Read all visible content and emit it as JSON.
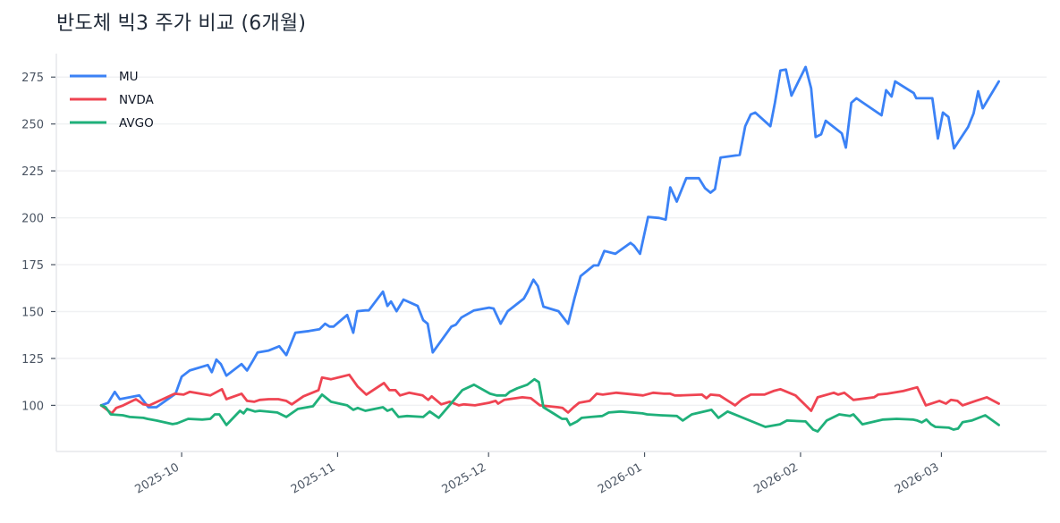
{
  "title": "반도체 빅3 주가 비교 (6개월)",
  "colors": {
    "MU": "#3b82f6",
    "NVDA": "#ef4452",
    "AVGO": "#1fb07a",
    "grid": "#f0f1f3",
    "axis": "#e5e7eb",
    "tick": "#4b5563"
  },
  "chart_data": {
    "type": "line",
    "title": "반도체 빅3 주가 비교 (6개월)",
    "xlabel": "",
    "ylabel": "",
    "x_unit": "days since 2025-09-15",
    "x_range": [
      -8.9,
      187.9
    ],
    "ylim": [
      75.4,
      287.5
    ],
    "yticks": [
      100,
      125,
      150,
      175,
      200,
      225,
      250,
      275
    ],
    "xticks": [
      {
        "label": "2025-10",
        "day": 16
      },
      {
        "label": "2025-11",
        "day": 47
      },
      {
        "label": "2025-12",
        "day": 77
      },
      {
        "label": "2026-01",
        "day": 108
      },
      {
        "label": "2026-02",
        "day": 139
      },
      {
        "label": "2026-03",
        "day": 167
      }
    ],
    "grid": {
      "horizontal": true,
      "vertical": false
    },
    "legend_position": "upper left",
    "series": [
      {
        "name": "MU",
        "points": [
          [
            0,
            100
          ],
          [
            1.4,
            101.4
          ],
          [
            2.7,
            107.2
          ],
          [
            3.7,
            103.3
          ],
          [
            7.6,
            105.3
          ],
          [
            9.4,
            99.0
          ],
          [
            11,
            99.0
          ],
          [
            14.8,
            106.2
          ],
          [
            16,
            115.3
          ],
          [
            17.6,
            118.6
          ],
          [
            21.2,
            121.5
          ],
          [
            22,
            117.7
          ],
          [
            22.9,
            124.4
          ],
          [
            23.8,
            122
          ],
          [
            24.9,
            115.8
          ],
          [
            27.9,
            122
          ],
          [
            29,
            118.6
          ],
          [
            30.2,
            123.9
          ],
          [
            31.1,
            128.2
          ],
          [
            33.3,
            129.2
          ],
          [
            35.4,
            131.5
          ],
          [
            36.8,
            126.8
          ],
          [
            38.6,
            138.7
          ],
          [
            41.3,
            139.6
          ],
          [
            43.4,
            140.6
          ],
          [
            44.5,
            143.5
          ],
          [
            45.4,
            142
          ],
          [
            46.2,
            142
          ],
          [
            48.9,
            148.2
          ],
          [
            50.1,
            138.7
          ],
          [
            50.9,
            150.2
          ],
          [
            52.5,
            150.6
          ],
          [
            53.2,
            150.6
          ],
          [
            56,
            160.6
          ],
          [
            56.9,
            153
          ],
          [
            57.6,
            155.4
          ],
          [
            58.7,
            150.2
          ],
          [
            60.1,
            156.4
          ],
          [
            62.9,
            153
          ],
          [
            64,
            145.4
          ],
          [
            64.9,
            143.5
          ],
          [
            65.9,
            128.2
          ],
          [
            69.6,
            142
          ],
          [
            70.5,
            143
          ],
          [
            71.6,
            146.8
          ],
          [
            74.1,
            150.6
          ],
          [
            77.1,
            152.1
          ],
          [
            78,
            151.6
          ],
          [
            79.4,
            143.5
          ],
          [
            80.8,
            150.2
          ],
          [
            84,
            156.9
          ],
          [
            84.7,
            160.2
          ],
          [
            85.9,
            167
          ],
          [
            86.8,
            163.6
          ],
          [
            87.9,
            152.6
          ],
          [
            90.9,
            150.2
          ],
          [
            92.8,
            143.5
          ],
          [
            94.1,
            157.4
          ],
          [
            95.3,
            168.9
          ],
          [
            97.9,
            174.6
          ],
          [
            98.8,
            174.6
          ],
          [
            100,
            182.3
          ],
          [
            102.2,
            180.8
          ],
          [
            105.2,
            186.6
          ],
          [
            105.9,
            185.1
          ],
          [
            107.1,
            180.8
          ],
          [
            108.7,
            200.4
          ],
          [
            110.9,
            199.9
          ],
          [
            112.2,
            199
          ],
          [
            113.1,
            216.2
          ],
          [
            114.4,
            208.6
          ],
          [
            116.3,
            221.1
          ],
          [
            118.8,
            221.1
          ],
          [
            120,
            215.8
          ],
          [
            121.1,
            213.4
          ],
          [
            122,
            215.3
          ],
          [
            123.1,
            232.1
          ],
          [
            126.9,
            233.5
          ],
          [
            128,
            248.8
          ],
          [
            129.1,
            255.1
          ],
          [
            130,
            256.1
          ],
          [
            133,
            248.8
          ],
          [
            133.9,
            261.3
          ],
          [
            135,
            278.5
          ],
          [
            136.1,
            279
          ],
          [
            137.2,
            265.1
          ],
          [
            140,
            280.4
          ],
          [
            141.1,
            269
          ],
          [
            142,
            243.1
          ],
          [
            143.1,
            244.5
          ],
          [
            144,
            251.7
          ],
          [
            147.2,
            245
          ],
          [
            148,
            237.4
          ],
          [
            149.1,
            261.3
          ],
          [
            150.1,
            263.7
          ],
          [
            155.1,
            254.6
          ],
          [
            156,
            268
          ],
          [
            157.1,
            264.6
          ],
          [
            157.8,
            272.7
          ],
          [
            161.5,
            266.5
          ],
          [
            162,
            263.7
          ],
          [
            164.2,
            263.7
          ],
          [
            165.2,
            263.7
          ],
          [
            166.3,
            242.2
          ],
          [
            167.3,
            256.1
          ],
          [
            168.4,
            253.7
          ],
          [
            169.5,
            237
          ],
          [
            172.3,
            248.4
          ],
          [
            173.4,
            255.6
          ],
          [
            174.3,
            267.5
          ],
          [
            175.2,
            258.4
          ],
          [
            178.4,
            272.7
          ]
        ]
      },
      {
        "name": "NVDA",
        "points": [
          [
            0,
            100
          ],
          [
            2.1,
            95.7
          ],
          [
            3,
            98.6
          ],
          [
            4.4,
            100
          ],
          [
            6.9,
            103.3
          ],
          [
            8.4,
            100.5
          ],
          [
            9.6,
            100
          ],
          [
            14.6,
            106.2
          ],
          [
            16.4,
            105.7
          ],
          [
            17.6,
            107.2
          ],
          [
            21.7,
            105.3
          ],
          [
            24,
            108.6
          ],
          [
            24.9,
            103.3
          ],
          [
            27.9,
            106.2
          ],
          [
            29,
            102.4
          ],
          [
            30.4,
            101.9
          ],
          [
            31.5,
            102.9
          ],
          [
            33.3,
            103.3
          ],
          [
            35.2,
            103.3
          ],
          [
            36.8,
            102.4
          ],
          [
            37.9,
            100.5
          ],
          [
            40.2,
            104.8
          ],
          [
            43.2,
            108.1
          ],
          [
            43.9,
            114.8
          ],
          [
            45.7,
            113.9
          ],
          [
            49.3,
            116.3
          ],
          [
            51,
            110
          ],
          [
            52.7,
            105.7
          ],
          [
            56.2,
            111.9
          ],
          [
            57.3,
            108.1
          ],
          [
            58.5,
            108.1
          ],
          [
            59.4,
            105.3
          ],
          [
            61.2,
            106.7
          ],
          [
            63.9,
            105.3
          ],
          [
            65,
            102.9
          ],
          [
            65.7,
            104.8
          ],
          [
            67.6,
            100.5
          ],
          [
            69.3,
            101.9
          ],
          [
            71.1,
            100
          ],
          [
            72.1,
            100.5
          ],
          [
            74.3,
            100
          ],
          [
            77.1,
            101.4
          ],
          [
            78.4,
            102.4
          ],
          [
            78.9,
            100.9
          ],
          [
            80.1,
            102.9
          ],
          [
            83.7,
            104.3
          ],
          [
            85.4,
            103.8
          ],
          [
            87.2,
            100
          ],
          [
            90.8,
            99.0
          ],
          [
            91.7,
            98.6
          ],
          [
            92.8,
            96.2
          ],
          [
            93.9,
            99.0
          ],
          [
            95,
            101.4
          ],
          [
            97.1,
            102.4
          ],
          [
            98.5,
            106.2
          ],
          [
            99.7,
            105.7
          ],
          [
            102.4,
            106.7
          ],
          [
            107.7,
            105.3
          ],
          [
            109.7,
            106.7
          ],
          [
            111.9,
            106.2
          ],
          [
            113.1,
            106.2
          ],
          [
            114,
            105.3
          ],
          [
            115.1,
            105.3
          ],
          [
            119.4,
            105.7
          ],
          [
            120.3,
            103.8
          ],
          [
            121.1,
            105.7
          ],
          [
            122.9,
            105.3
          ],
          [
            126,
            100
          ],
          [
            127.4,
            103.3
          ],
          [
            129.1,
            105.7
          ],
          [
            131.8,
            105.7
          ],
          [
            133.6,
            107.6
          ],
          [
            135,
            108.6
          ],
          [
            138,
            105.3
          ],
          [
            140,
            100
          ],
          [
            141.1,
            97.1
          ],
          [
            142.4,
            104.3
          ],
          [
            145.6,
            106.7
          ],
          [
            146.5,
            105.7
          ],
          [
            147.7,
            106.7
          ],
          [
            149.5,
            102.9
          ],
          [
            153.6,
            104.3
          ],
          [
            154.4,
            105.7
          ],
          [
            156.2,
            106.2
          ],
          [
            159.4,
            107.6
          ],
          [
            162.2,
            109.6
          ],
          [
            163.9,
            100
          ],
          [
            166.6,
            102.4
          ],
          [
            167.9,
            100.9
          ],
          [
            168.9,
            102.9
          ],
          [
            170.2,
            102.4
          ],
          [
            171.2,
            100
          ],
          [
            173.8,
            102.4
          ],
          [
            176,
            104.3
          ],
          [
            178.4,
            100.9
          ]
        ]
      },
      {
        "name": "AVGO",
        "points": [
          [
            0,
            100
          ],
          [
            0.9,
            99.0
          ],
          [
            1.9,
            95.2
          ],
          [
            4.3,
            94.7
          ],
          [
            5.7,
            93.8
          ],
          [
            8.4,
            93.3
          ],
          [
            9.2,
            92.8
          ],
          [
            11,
            91.9
          ],
          [
            14.2,
            90
          ],
          [
            15.1,
            90.4
          ],
          [
            17.3,
            92.8
          ],
          [
            20.1,
            92.4
          ],
          [
            21.7,
            92.8
          ],
          [
            22.6,
            95.2
          ],
          [
            23.5,
            95.2
          ],
          [
            24.9,
            89.5
          ],
          [
            27.6,
            97.1
          ],
          [
            28.3,
            95.7
          ],
          [
            29,
            98.1
          ],
          [
            30.6,
            96.7
          ],
          [
            31.5,
            97.1
          ],
          [
            35,
            96.2
          ],
          [
            36.8,
            93.8
          ],
          [
            39.1,
            98.1
          ],
          [
            42.1,
            99.5
          ],
          [
            43.9,
            105.7
          ],
          [
            45.7,
            101.9
          ],
          [
            48.9,
            100
          ],
          [
            50.1,
            97.6
          ],
          [
            51,
            98.6
          ],
          [
            52.5,
            97.1
          ],
          [
            56,
            99.0
          ],
          [
            56.9,
            97.1
          ],
          [
            57.8,
            98.1
          ],
          [
            59.1,
            93.8
          ],
          [
            60.8,
            94.3
          ],
          [
            64,
            93.8
          ],
          [
            65.3,
            96.7
          ],
          [
            67.1,
            93.3
          ],
          [
            69.4,
            100.5
          ],
          [
            71.8,
            108.1
          ],
          [
            74.1,
            111
          ],
          [
            77.3,
            106.2
          ],
          [
            78.6,
            105.3
          ],
          [
            80.4,
            105.3
          ],
          [
            81.2,
            107.2
          ],
          [
            82.7,
            109.1
          ],
          [
            84.7,
            111
          ],
          [
            86.1,
            113.9
          ],
          [
            87,
            112.4
          ],
          [
            87.9,
            99.0
          ],
          [
            90.2,
            95.2
          ],
          [
            91.6,
            92.8
          ],
          [
            92.5,
            92.8
          ],
          [
            93.2,
            89.5
          ],
          [
            94.6,
            91.4
          ],
          [
            95.5,
            93.3
          ],
          [
            97.3,
            93.8
          ],
          [
            99.6,
            94.3
          ],
          [
            100.9,
            96.2
          ],
          [
            103.2,
            96.7
          ],
          [
            107.6,
            95.7
          ],
          [
            108.5,
            95.2
          ],
          [
            111.2,
            94.7
          ],
          [
            114.4,
            94.3
          ],
          [
            115.6,
            91.9
          ],
          [
            117.4,
            95.2
          ],
          [
            121.3,
            97.6
          ],
          [
            122.7,
            93.3
          ],
          [
            124.5,
            96.7
          ],
          [
            132,
            88.5
          ],
          [
            134.9,
            89.9
          ],
          [
            136.3,
            91.9
          ],
          [
            140,
            91.4
          ],
          [
            141.5,
            87.1
          ],
          [
            142.4,
            86.1
          ],
          [
            144.2,
            91.9
          ],
          [
            146.7,
            95.2
          ],
          [
            148.8,
            94.3
          ],
          [
            149.5,
            95.2
          ],
          [
            151.3,
            89.9
          ],
          [
            155.4,
            92.4
          ],
          [
            158.1,
            92.8
          ],
          [
            161.3,
            92.4
          ],
          [
            162.2,
            91.9
          ],
          [
            163.1,
            90.9
          ],
          [
            164,
            92.4
          ],
          [
            164.9,
            90
          ],
          [
            165.8,
            88.5
          ],
          [
            168.5,
            88.1
          ],
          [
            169.4,
            87.1
          ],
          [
            170.3,
            87.6
          ],
          [
            171.2,
            91
          ],
          [
            173,
            91.9
          ],
          [
            175.7,
            94.7
          ],
          [
            178.4,
            89.5
          ]
        ]
      }
    ]
  }
}
